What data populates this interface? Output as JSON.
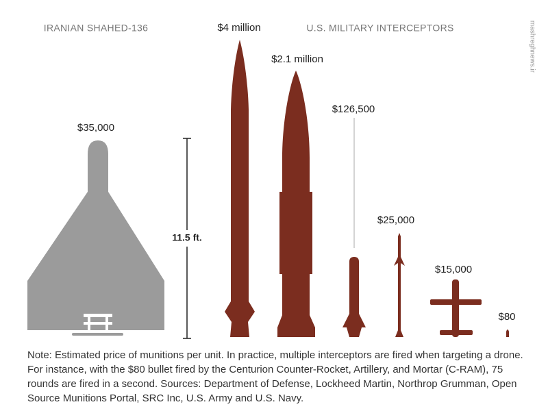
{
  "headings": {
    "drone": "IRANIAN SHAHED-136",
    "interceptors": "U.S. MILITARY INTERCEPTORS"
  },
  "prices": [
    "$35,000",
    "$4 million",
    "$2.1 million",
    "$126,500",
    "$25,000",
    "$15,000",
    "$80"
  ],
  "scale_label": "11.5 ft.",
  "note": "Note: Estimated price of munitions per unit. In practice, multiple interceptors are fired when targeting a drone. For instance, with the $80 bullet fired by the Centurion Counter-Rocket, Artillery, and Mortar (C-RAM), 75 rounds are fired in a second. Sources: Department of Defense, Lockheed Martin, Northrop Grumman, Open Source Munitions Portal, SRC Inc, U.S. Army and U.S. Navy.",
  "watermark": "mashreghnews.ir"
}
